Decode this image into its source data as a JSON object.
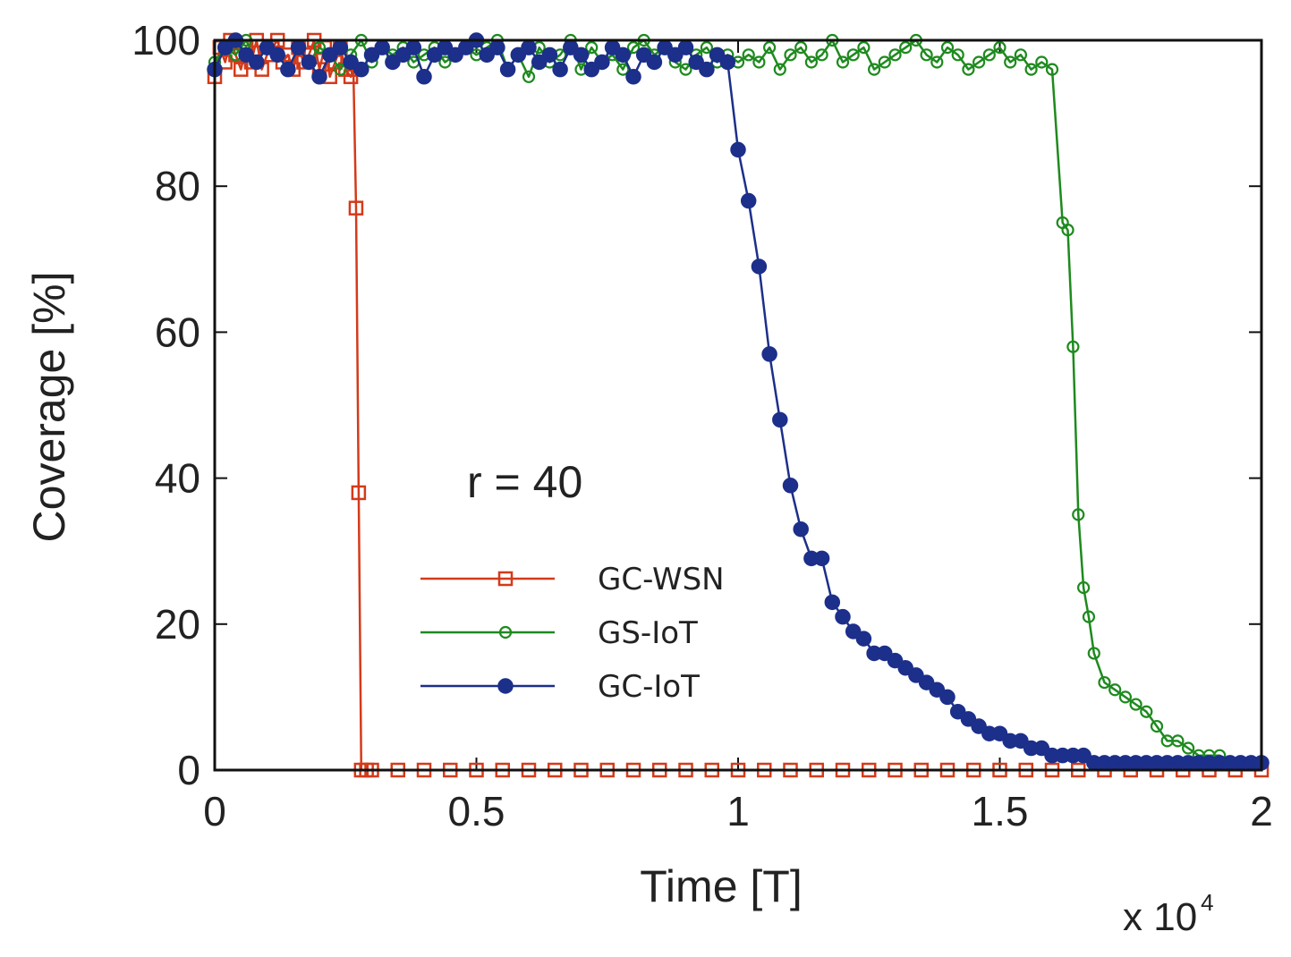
{
  "chart_data": {
    "type": "line",
    "title": "",
    "xlabel": "Time [T]",
    "ylabel": "Coverage [%]",
    "x_multiplier_label": "x 10",
    "x_multiplier_exp": "4",
    "annotation": "r = 40",
    "xlim": [
      0,
      2
    ],
    "ylim": [
      0,
      100
    ],
    "xticks": [
      0,
      0.5,
      1,
      1.5,
      2
    ],
    "xtick_labels": [
      "0",
      "0.5",
      "1",
      "1.5",
      "2"
    ],
    "yticks": [
      0,
      20,
      40,
      60,
      80,
      100
    ],
    "ytick_labels": [
      "0",
      "20",
      "40",
      "60",
      "80",
      "100"
    ],
    "legend_position": "center",
    "series": [
      {
        "name": "GC-WSN",
        "color": "#d43a1a",
        "marker": "square-open",
        "x": [
          0.0,
          0.01,
          0.02,
          0.03,
          0.04,
          0.05,
          0.06,
          0.07,
          0.08,
          0.09,
          0.1,
          0.11,
          0.12,
          0.13,
          0.14,
          0.15,
          0.16,
          0.17,
          0.18,
          0.19,
          0.2,
          0.21,
          0.22,
          0.23,
          0.24,
          0.25,
          0.26,
          0.265,
          0.27,
          0.275,
          0.28,
          0.29,
          0.3,
          0.35,
          0.4,
          0.45,
          0.5,
          0.55,
          0.6,
          0.65,
          0.7,
          0.75,
          0.8,
          0.85,
          0.9,
          0.95,
          1.0,
          1.05,
          1.1,
          1.15,
          1.2,
          1.25,
          1.3,
          1.35,
          1.4,
          1.45,
          1.5,
          1.55,
          1.6,
          1.65,
          1.7,
          1.75,
          1.8,
          1.85,
          1.9,
          1.95,
          2.0
        ],
        "y": [
          95,
          99,
          97,
          100,
          98,
          96,
          99,
          97,
          100,
          96,
          98,
          99,
          100,
          97,
          98,
          96,
          99,
          97,
          98,
          100,
          96,
          99,
          95,
          97,
          99,
          96,
          95,
          96,
          77,
          38,
          0,
          0,
          0,
          0,
          0,
          0,
          0,
          0,
          0,
          0,
          0,
          0,
          0,
          0,
          0,
          0,
          0,
          0,
          0,
          0,
          0,
          0,
          0,
          0,
          0,
          0,
          0,
          0,
          0,
          0,
          0,
          0,
          0,
          0,
          0,
          0,
          0
        ]
      },
      {
        "name": "GS-IoT",
        "color": "#1e8a1e",
        "marker": "circle-open",
        "x": [
          0.0,
          0.02,
          0.04,
          0.06,
          0.08,
          0.1,
          0.12,
          0.14,
          0.16,
          0.18,
          0.2,
          0.22,
          0.24,
          0.26,
          0.28,
          0.3,
          0.32,
          0.34,
          0.36,
          0.38,
          0.4,
          0.42,
          0.44,
          0.46,
          0.48,
          0.5,
          0.52,
          0.54,
          0.56,
          0.58,
          0.6,
          0.62,
          0.64,
          0.66,
          0.68,
          0.7,
          0.72,
          0.74,
          0.76,
          0.78,
          0.8,
          0.82,
          0.84,
          0.86,
          0.88,
          0.9,
          0.92,
          0.94,
          0.96,
          0.98,
          1.0,
          1.02,
          1.04,
          1.06,
          1.08,
          1.1,
          1.12,
          1.14,
          1.16,
          1.18,
          1.2,
          1.22,
          1.24,
          1.26,
          1.28,
          1.3,
          1.32,
          1.34,
          1.36,
          1.38,
          1.4,
          1.42,
          1.44,
          1.46,
          1.48,
          1.5,
          1.52,
          1.54,
          1.56,
          1.58,
          1.6,
          1.62,
          1.63,
          1.64,
          1.65,
          1.66,
          1.67,
          1.68,
          1.7,
          1.72,
          1.74,
          1.76,
          1.78,
          1.8,
          1.82,
          1.84,
          1.86,
          1.88,
          1.9,
          1.92,
          1.94,
          1.96,
          1.98,
          2.0
        ],
        "y": [
          97,
          99,
          98,
          100,
          97,
          99,
          98,
          96,
          99,
          97,
          99,
          98,
          96,
          98,
          100,
          97,
          99,
          98,
          99,
          97,
          98,
          99,
          97,
          98,
          99,
          98,
          99,
          100,
          96,
          98,
          95,
          99,
          97,
          98,
          100,
          96,
          99,
          97,
          98,
          96,
          99,
          100,
          98,
          99,
          97,
          96,
          98,
          99,
          97,
          98,
          97,
          98,
          97,
          99,
          96,
          98,
          99,
          97,
          98,
          100,
          97,
          98,
          99,
          96,
          97,
          98,
          99,
          100,
          98,
          97,
          99,
          98,
          96,
          97,
          98,
          99,
          97,
          98,
          96,
          97,
          96,
          75,
          74,
          58,
          35,
          25,
          21,
          16,
          12,
          11,
          10,
          9,
          8,
          6,
          4,
          4,
          3,
          2,
          2,
          2,
          1,
          1,
          1,
          1
        ]
      },
      {
        "name": "GC-IoT",
        "color": "#1c2f8a",
        "marker": "circle-filled",
        "x": [
          0.0,
          0.02,
          0.04,
          0.06,
          0.08,
          0.1,
          0.12,
          0.14,
          0.16,
          0.18,
          0.2,
          0.22,
          0.24,
          0.26,
          0.28,
          0.3,
          0.32,
          0.34,
          0.36,
          0.38,
          0.4,
          0.42,
          0.44,
          0.46,
          0.48,
          0.5,
          0.52,
          0.54,
          0.56,
          0.58,
          0.6,
          0.62,
          0.64,
          0.66,
          0.68,
          0.7,
          0.72,
          0.74,
          0.76,
          0.78,
          0.8,
          0.82,
          0.84,
          0.86,
          0.88,
          0.9,
          0.92,
          0.94,
          0.96,
          0.98,
          1.0,
          1.02,
          1.04,
          1.06,
          1.08,
          1.1,
          1.12,
          1.14,
          1.16,
          1.18,
          1.2,
          1.22,
          1.24,
          1.26,
          1.28,
          1.3,
          1.32,
          1.34,
          1.36,
          1.38,
          1.4,
          1.42,
          1.44,
          1.46,
          1.48,
          1.5,
          1.52,
          1.54,
          1.56,
          1.58,
          1.6,
          1.62,
          1.64,
          1.66,
          1.68,
          1.7,
          1.72,
          1.74,
          1.76,
          1.78,
          1.8,
          1.82,
          1.84,
          1.86,
          1.88,
          1.9,
          1.92,
          1.94,
          1.96,
          1.98,
          2.0
        ],
        "y": [
          96,
          99,
          100,
          98,
          97,
          99,
          98,
          96,
          99,
          97,
          95,
          98,
          99,
          97,
          96,
          98,
          99,
          97,
          98,
          99,
          95,
          98,
          99,
          98,
          99,
          100,
          98,
          99,
          96,
          98,
          99,
          97,
          98,
          96,
          99,
          98,
          96,
          97,
          99,
          98,
          95,
          98,
          97,
          99,
          98,
          99,
          97,
          96,
          98,
          97,
          85,
          78,
          69,
          57,
          48,
          39,
          33,
          29,
          29,
          23,
          21,
          19,
          18,
          16,
          16,
          15,
          14,
          13,
          12,
          11,
          10,
          8,
          7,
          6,
          5,
          5,
          4,
          4,
          3,
          3,
          2,
          2,
          2,
          2,
          1,
          1,
          1,
          1,
          1,
          1,
          1,
          1,
          1,
          1,
          1,
          1,
          1,
          1,
          1,
          1,
          1
        ]
      }
    ]
  }
}
